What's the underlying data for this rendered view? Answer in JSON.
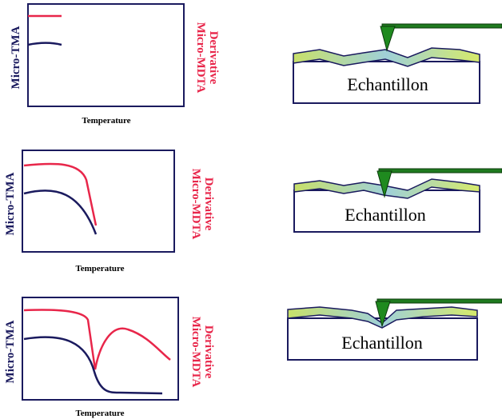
{
  "panels": [
    {
      "y_label": "Micro-TMA",
      "y2_label": [
        "Derivative",
        "Micro-MDTA"
      ],
      "x_label": "Temperature",
      "sample_label": "Echantillon"
    },
    {
      "y_label": "Micro-TMA",
      "y2_label": [
        "Derivative",
        "Micro-MDTA"
      ],
      "x_label": "Temperature",
      "sample_label": "Echantillon"
    },
    {
      "y_label": "Micro-TMA",
      "y2_label": [
        "Derivative",
        "Micro-MDTA"
      ],
      "x_label": "Temperature",
      "sample_label": "Echantillon"
    }
  ]
}
